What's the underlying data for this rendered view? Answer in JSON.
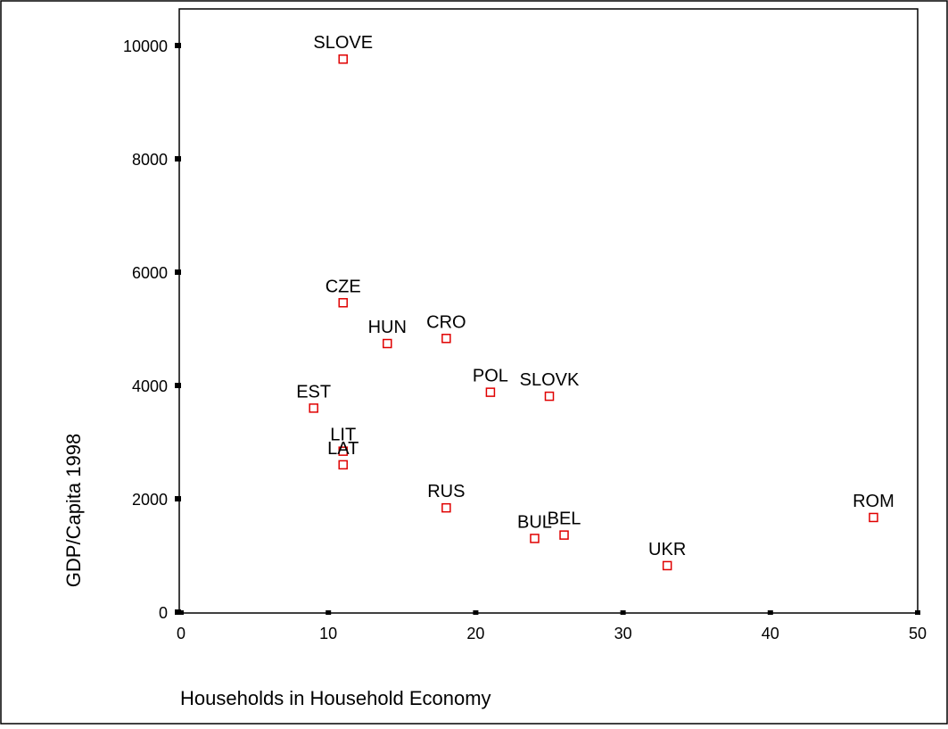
{
  "chart_data": {
    "type": "scatter",
    "xlabel": "Households in Household Economy",
    "ylabel": "GDP/Capita 1998",
    "xlim": [
      0,
      50
    ],
    "ylim": [
      0,
      10000
    ],
    "x_ticks": [
      0,
      10,
      20,
      30,
      40,
      50
    ],
    "y_ticks": [
      0,
      2000,
      4000,
      6000,
      8000,
      10000
    ],
    "grid": false,
    "marker_color": "#e00000",
    "points": [
      {
        "label": "SLOVE",
        "x": 11,
        "y": 9760
      },
      {
        "label": "CZE",
        "x": 11,
        "y": 5460
      },
      {
        "label": "HUN",
        "x": 14,
        "y": 4740
      },
      {
        "label": "CRO",
        "x": 18,
        "y": 4830
      },
      {
        "label": "POL",
        "x": 21,
        "y": 3880
      },
      {
        "label": "SLOVK",
        "x": 25,
        "y": 3810
      },
      {
        "label": "EST",
        "x": 9,
        "y": 3600
      },
      {
        "label": "LIT",
        "x": 11,
        "y": 2840
      },
      {
        "label": "LAT",
        "x": 11,
        "y": 2600
      },
      {
        "label": "RUS",
        "x": 18,
        "y": 1840
      },
      {
        "label": "BUL",
        "x": 24,
        "y": 1300
      },
      {
        "label": "BEL",
        "x": 26,
        "y": 1360
      },
      {
        "label": "UKR",
        "x": 33,
        "y": 820
      },
      {
        "label": "ROM",
        "x": 47,
        "y": 1670
      }
    ]
  }
}
